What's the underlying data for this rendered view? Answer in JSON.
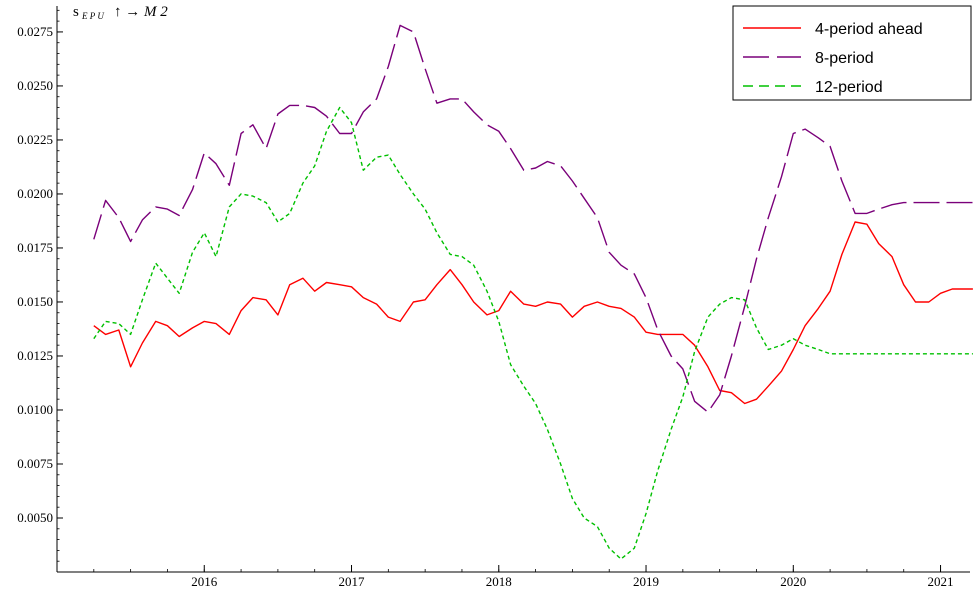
{
  "chart_data": {
    "type": "line",
    "title_main": "s",
    "title_sub": "E P U",
    "title_tail": "↑ → M 2",
    "xlabel": "",
    "ylabel": "",
    "xlim": [
      2015.0,
      2021.2
    ],
    "ylim": [
      0.0025,
      0.0287
    ],
    "x_ticks": [
      2016,
      2017,
      2018,
      2019,
      2020,
      2021
    ],
    "x_tick_labels": [
      "2016",
      "2017",
      "2018",
      "2019",
      "2020",
      "2021"
    ],
    "y_ticks": [
      0.005,
      0.0075,
      0.01,
      0.0125,
      0.015,
      0.0175,
      0.02,
      0.0225,
      0.025,
      0.0275
    ],
    "y_tick_labels": [
      "0.0050",
      "0.0075",
      "0.0100",
      "0.0125",
      "0.0150",
      "0.0175",
      "0.0200",
      "0.0225",
      "0.0250",
      "0.0275"
    ],
    "legend_position": "top-right",
    "grid": false,
    "series": [
      {
        "name": "4-period ahead",
        "color": "#ff0000",
        "dash": "solid",
        "x": [
          2015.25,
          2015.33,
          2015.42,
          2015.5,
          2015.58,
          2015.67,
          2015.75,
          2015.83,
          2015.92,
          2016.0,
          2016.08,
          2016.17,
          2016.25,
          2016.33,
          2016.42,
          2016.5,
          2016.58,
          2016.67,
          2016.75,
          2016.83,
          2016.92,
          2017.0,
          2017.08,
          2017.17,
          2017.25,
          2017.33,
          2017.42,
          2017.5,
          2017.58,
          2017.67,
          2017.75,
          2017.83,
          2017.92,
          2018.0,
          2018.08,
          2018.17,
          2018.25,
          2018.33,
          2018.42,
          2018.5,
          2018.58,
          2018.67,
          2018.75,
          2018.83,
          2018.92,
          2019.0,
          2019.08,
          2019.17,
          2019.25,
          2019.33,
          2019.42,
          2019.5,
          2019.58,
          2019.67,
          2019.75,
          2019.83,
          2019.92,
          2020.0,
          2020.08,
          2020.17,
          2020.25,
          2020.33,
          2020.42,
          2020.5,
          2020.58,
          2020.67,
          2020.75,
          2020.83,
          2020.92,
          2021.0,
          2021.08,
          2021.17,
          2021.22
        ],
        "y": [
          0.0139,
          0.0135,
          0.0137,
          0.012,
          0.0131,
          0.0141,
          0.0139,
          0.0134,
          0.0138,
          0.0141,
          0.014,
          0.0135,
          0.0146,
          0.0152,
          0.0151,
          0.0144,
          0.0158,
          0.0161,
          0.0155,
          0.0159,
          0.0158,
          0.0157,
          0.0152,
          0.0149,
          0.0143,
          0.0141,
          0.015,
          0.0151,
          0.0158,
          0.0165,
          0.0158,
          0.015,
          0.0144,
          0.0146,
          0.0155,
          0.0149,
          0.0148,
          0.015,
          0.0149,
          0.0143,
          0.0148,
          0.015,
          0.0148,
          0.0147,
          0.0143,
          0.0136,
          0.0135,
          0.0135,
          0.0135,
          0.013,
          0.012,
          0.0109,
          0.0108,
          0.0103,
          0.0105,
          0.0111,
          0.0118,
          0.0128,
          0.0139,
          0.0147,
          0.0155,
          0.0172,
          0.0187,
          0.0186,
          0.0177,
          0.0171,
          0.0158,
          0.015,
          0.015,
          0.0154,
          0.0156,
          0.0156,
          0.0156
        ]
      },
      {
        "name": "8-period",
        "color": "#7a007a",
        "dash": "long",
        "x": [
          2015.25,
          2015.33,
          2015.42,
          2015.5,
          2015.58,
          2015.67,
          2015.75,
          2015.83,
          2015.92,
          2016.0,
          2016.08,
          2016.17,
          2016.25,
          2016.33,
          2016.42,
          2016.5,
          2016.58,
          2016.67,
          2016.75,
          2016.83,
          2016.92,
          2017.0,
          2017.08,
          2017.17,
          2017.25,
          2017.33,
          2017.42,
          2017.5,
          2017.58,
          2017.67,
          2017.75,
          2017.83,
          2017.92,
          2018.0,
          2018.08,
          2018.17,
          2018.25,
          2018.33,
          2018.42,
          2018.5,
          2018.58,
          2018.67,
          2018.75,
          2018.83,
          2018.92,
          2019.0,
          2019.08,
          2019.17,
          2019.25,
          2019.33,
          2019.42,
          2019.5,
          2019.58,
          2019.67,
          2019.75,
          2019.83,
          2019.92,
          2020.0,
          2020.08,
          2020.17,
          2020.25,
          2020.33,
          2020.42,
          2020.5,
          2020.58,
          2020.67,
          2020.75,
          2020.83,
          2020.92,
          2021.0,
          2021.08,
          2021.17,
          2021.22
        ],
        "y": [
          0.0179,
          0.0197,
          0.0189,
          0.0178,
          0.0188,
          0.0194,
          0.0193,
          0.019,
          0.0202,
          0.0219,
          0.0214,
          0.0204,
          0.0228,
          0.0232,
          0.0221,
          0.0237,
          0.0241,
          0.0241,
          0.024,
          0.0236,
          0.0228,
          0.0228,
          0.0238,
          0.0244,
          0.0259,
          0.0278,
          0.0275,
          0.0258,
          0.0242,
          0.0244,
          0.0244,
          0.0238,
          0.0232,
          0.0229,
          0.0221,
          0.0211,
          0.0212,
          0.0215,
          0.0213,
          0.0206,
          0.0198,
          0.0189,
          0.0173,
          0.0167,
          0.0163,
          0.0152,
          0.0137,
          0.0125,
          0.0119,
          0.0104,
          0.0099,
          0.0107,
          0.0125,
          0.0148,
          0.017,
          0.0189,
          0.0208,
          0.0228,
          0.023,
          0.0226,
          0.0222,
          0.0206,
          0.0191,
          0.0191,
          0.0193,
          0.0195,
          0.0196,
          0.0196,
          0.0196,
          0.0196,
          0.0196,
          0.0196,
          0.0196
        ]
      },
      {
        "name": "12-period",
        "color": "#00c000",
        "dash": "short",
        "x": [
          2015.25,
          2015.33,
          2015.42,
          2015.5,
          2015.58,
          2015.67,
          2015.75,
          2015.83,
          2015.92,
          2016.0,
          2016.08,
          2016.17,
          2016.25,
          2016.33,
          2016.42,
          2016.5,
          2016.58,
          2016.67,
          2016.75,
          2016.83,
          2016.92,
          2017.0,
          2017.08,
          2017.17,
          2017.25,
          2017.33,
          2017.42,
          2017.5,
          2017.58,
          2017.67,
          2017.75,
          2017.83,
          2017.92,
          2018.0,
          2018.08,
          2018.17,
          2018.25,
          2018.33,
          2018.42,
          2018.5,
          2018.58,
          2018.67,
          2018.75,
          2018.83,
          2018.92,
          2019.0,
          2019.08,
          2019.17,
          2019.25,
          2019.33,
          2019.42,
          2019.5,
          2019.58,
          2019.67,
          2019.75,
          2019.83,
          2019.92,
          2020.0,
          2020.08,
          2020.17,
          2020.25,
          2020.33,
          2020.42,
          2020.5,
          2020.58,
          2020.67,
          2020.75,
          2020.83,
          2020.92,
          2021.0,
          2021.08,
          2021.17,
          2021.22
        ],
        "y": [
          0.0133,
          0.0141,
          0.014,
          0.0135,
          0.0151,
          0.0168,
          0.0161,
          0.0154,
          0.0173,
          0.0182,
          0.0171,
          0.0194,
          0.02,
          0.0199,
          0.0196,
          0.0187,
          0.0191,
          0.0205,
          0.0213,
          0.0229,
          0.024,
          0.0233,
          0.0211,
          0.0217,
          0.0218,
          0.0209,
          0.02,
          0.0193,
          0.0182,
          0.0172,
          0.0171,
          0.0167,
          0.0155,
          0.0141,
          0.0121,
          0.0111,
          0.0103,
          0.0091,
          0.0075,
          0.0059,
          0.005,
          0.0046,
          0.0036,
          0.0031,
          0.0036,
          0.0052,
          0.0072,
          0.0091,
          0.0106,
          0.0127,
          0.0143,
          0.0149,
          0.0152,
          0.0151,
          0.0138,
          0.0128,
          0.013,
          0.0133,
          0.013,
          0.0128,
          0.0126,
          0.0126,
          0.0126,
          0.0126,
          0.0126,
          0.0126,
          0.0126,
          0.0126,
          0.0126,
          0.0126,
          0.0126,
          0.0126,
          0.0126
        ]
      }
    ]
  }
}
